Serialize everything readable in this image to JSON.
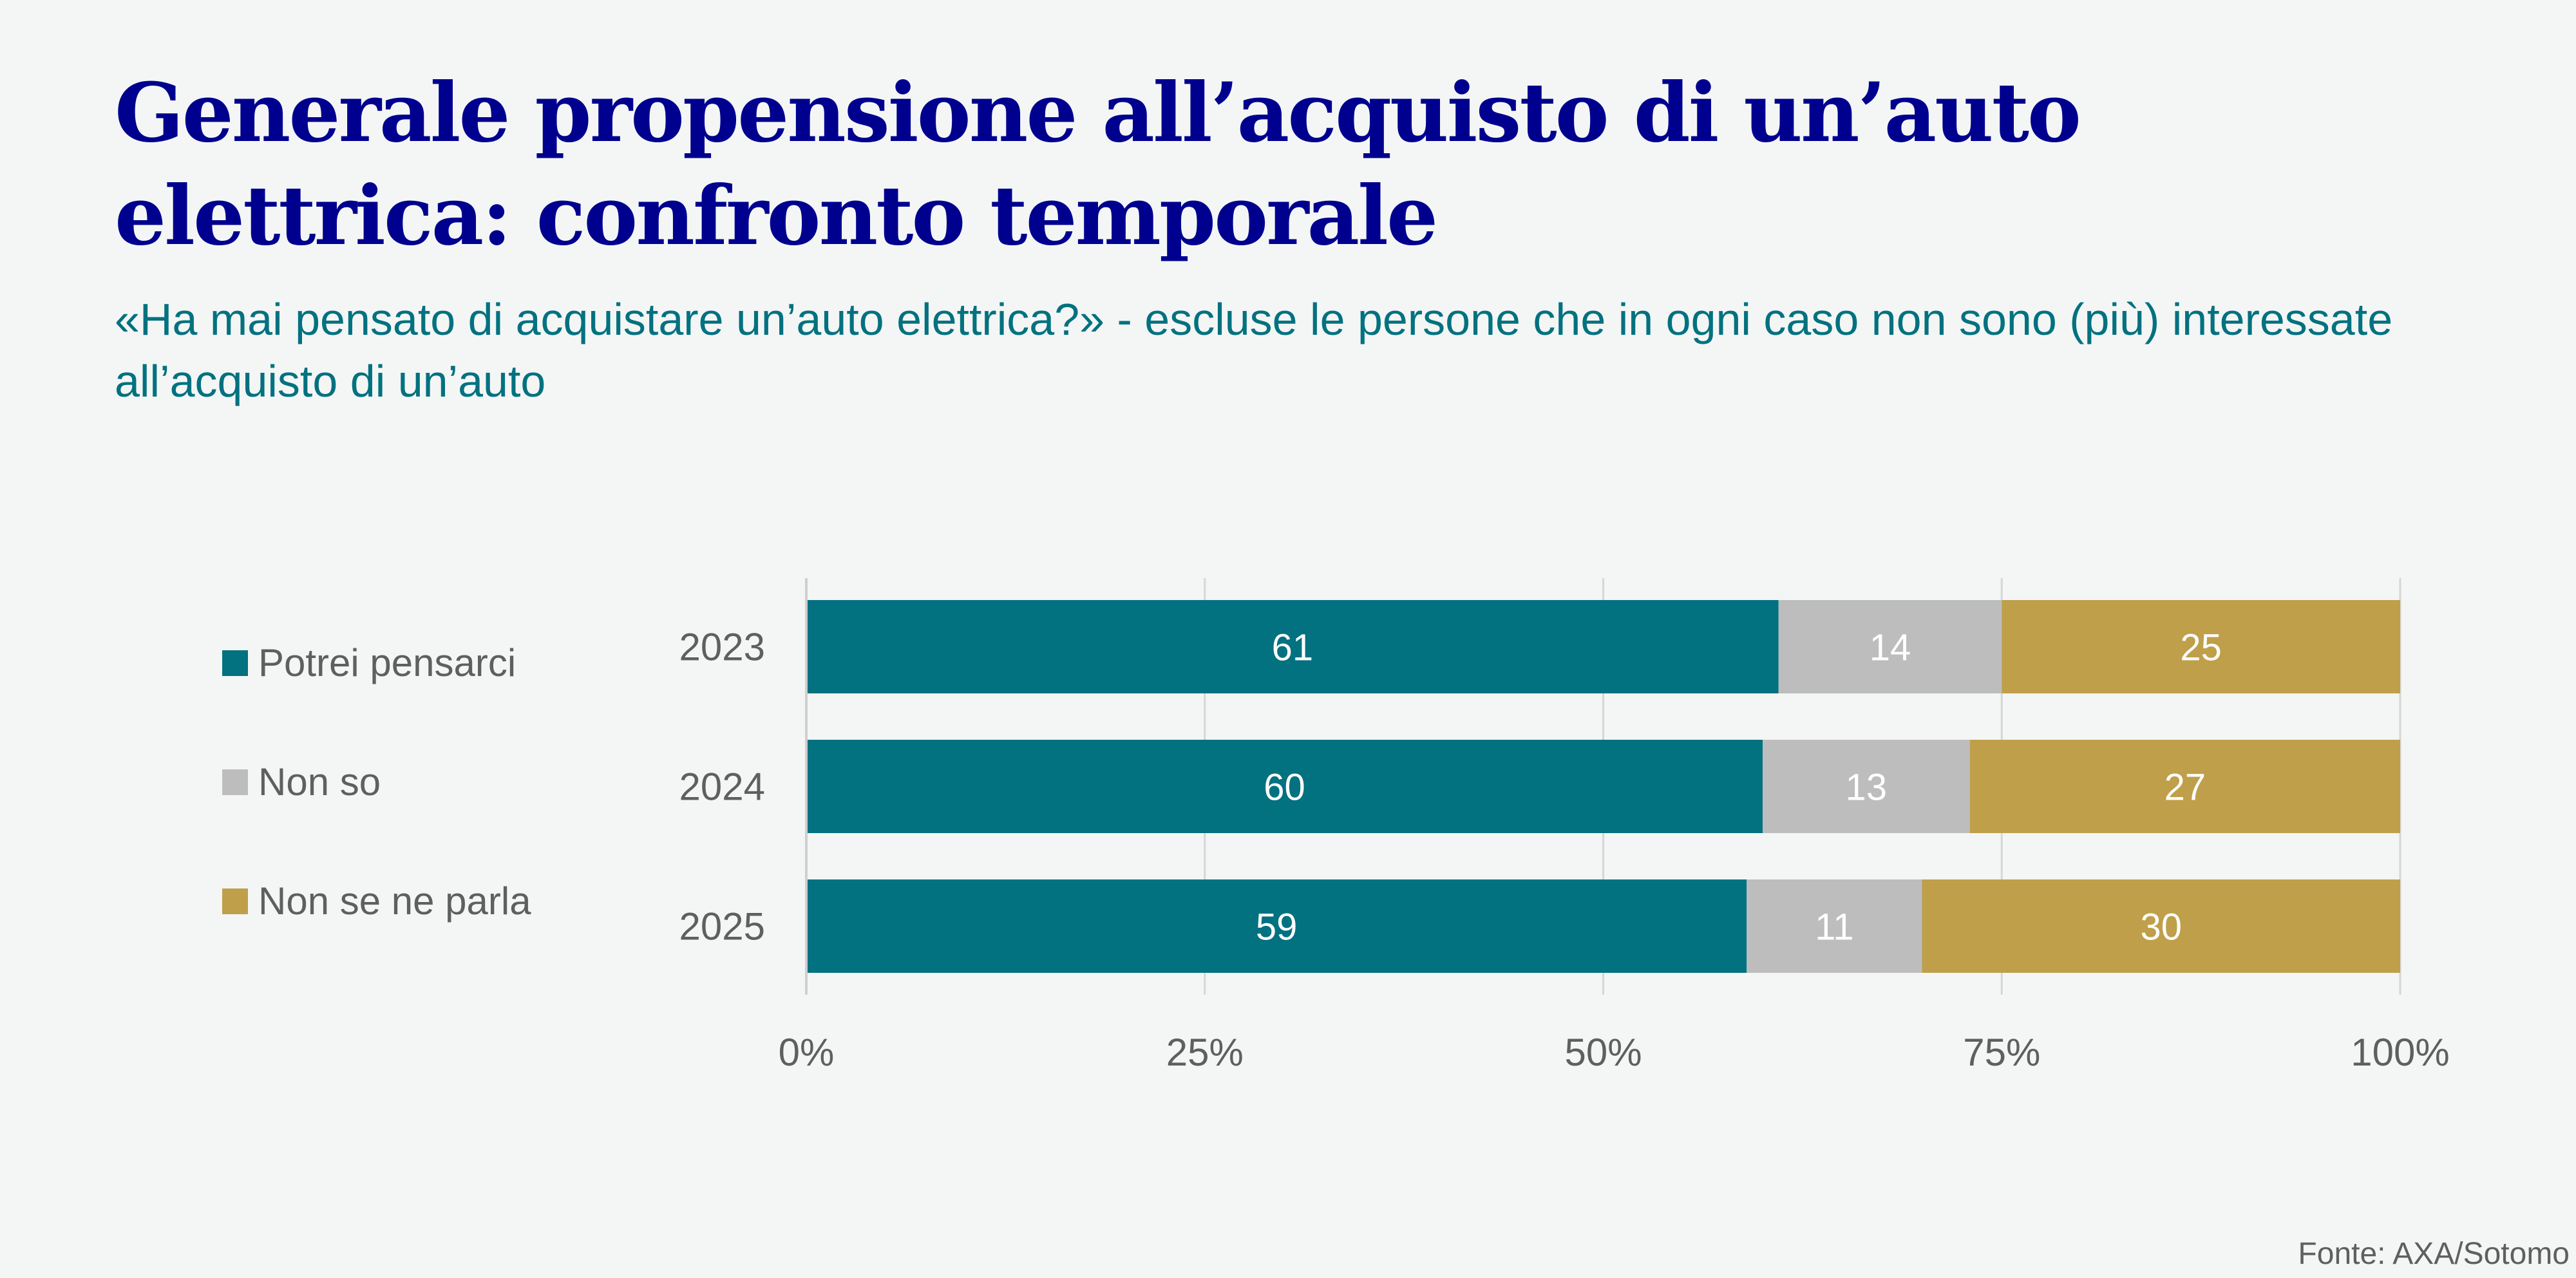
{
  "title": "Generale propensione all’acquisto di un’auto elettrica: confronto temporale",
  "subtitle": "«Ha mai pensato di acquistare un’auto elettrica?» - escluse le persone che in ogni caso non sono (più) interessate all’acquisto di un’auto",
  "source": "Fonte: AXA/Sotomo",
  "chart_data": {
    "type": "bar",
    "orientation": "horizontal",
    "stacked": true,
    "categories": [
      "2023",
      "2024",
      "2025"
    ],
    "series": [
      {
        "name": "Potrei pensarci",
        "color": "#027180",
        "values": [
          61,
          60,
          59
        ]
      },
      {
        "name": "Non so",
        "color": "#bdbdbd",
        "values": [
          14,
          13,
          11
        ]
      },
      {
        "name": "Non se ne parla",
        "color": "#bf9f49",
        "values": [
          25,
          27,
          30
        ]
      }
    ],
    "xlim": [
      0,
      100
    ],
    "x_ticks": [
      0,
      25,
      50,
      75,
      100
    ],
    "x_tick_labels": [
      "0%",
      "25%",
      "50%",
      "75%",
      "100%"
    ],
    "grid": true,
    "legend_position": "left"
  }
}
